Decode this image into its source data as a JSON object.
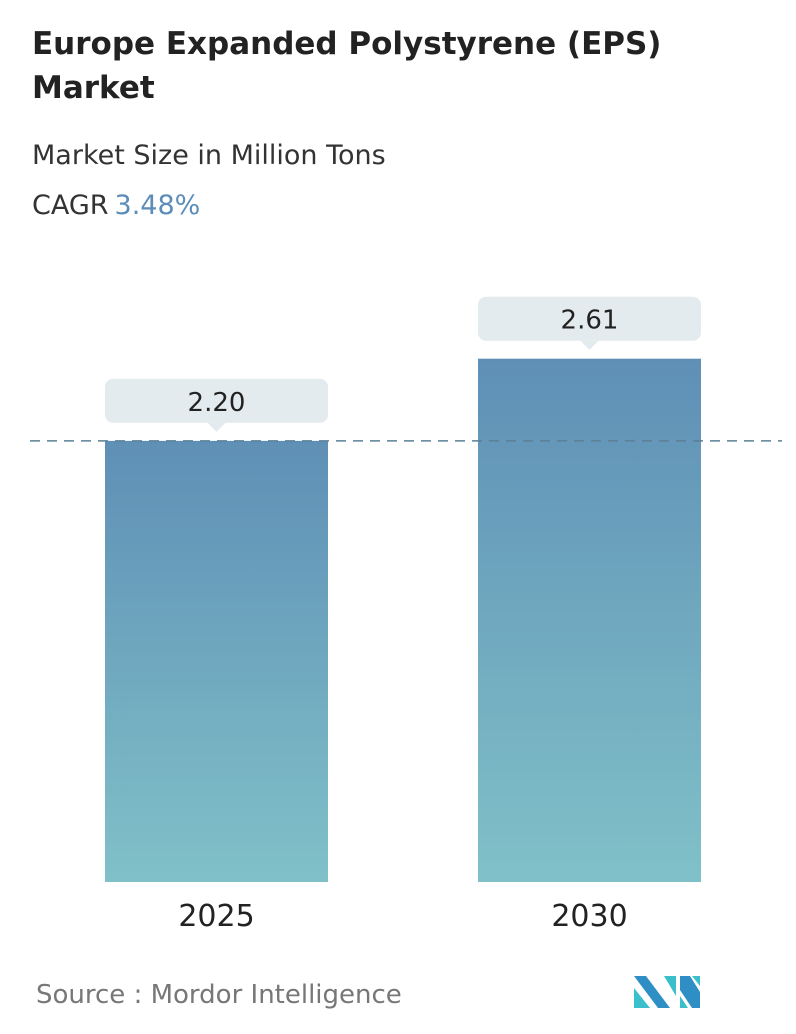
{
  "title": "Europe Expanded Polystyrene (EPS) Market",
  "subtitle": "Market Size in Million Tons",
  "cagr_label": "CAGR",
  "cagr_value": "3.48%",
  "source": "Source :  Mordor Intelligence",
  "logo_text": "Mordor Intelligence",
  "colors": {
    "bar_top": "#5f8fb6",
    "bar_bottom": "#80c1c8",
    "label_bg": "#e3ebee",
    "dashed_line": "#5b8096",
    "accent": "#5b8db8"
  },
  "chart_data": {
    "type": "bar",
    "categories": [
      "2025",
      "2030"
    ],
    "values": [
      2.2,
      2.61
    ],
    "data_labels": [
      "2.20",
      "2.61"
    ],
    "ylim": [
      0,
      2.61
    ],
    "grid": false,
    "reference_line": 2.2
  }
}
